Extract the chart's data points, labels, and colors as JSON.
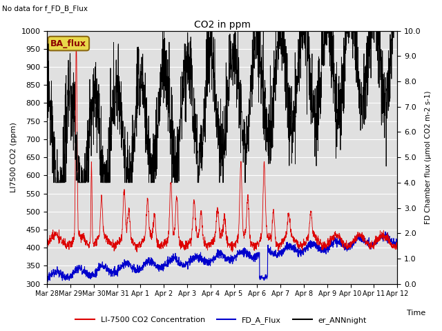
{
  "title": "CO2 in ppm",
  "top_left_text": "No data for f_FD_B_Flux",
  "ylabel_left": "LI7500 CO2 (ppm)",
  "ylabel_right": "FD Chamber flux (μmol CO2 m-2 s-1)",
  "xlabel": "Time",
  "ylim_left": [
    300,
    1000
  ],
  "ylim_right": [
    0.0,
    10.0
  ],
  "yticks_left": [
    300,
    350,
    400,
    450,
    500,
    550,
    600,
    650,
    700,
    750,
    800,
    850,
    900,
    950,
    1000
  ],
  "yticks_right": [
    0.0,
    1.0,
    2.0,
    3.0,
    4.0,
    5.0,
    6.0,
    7.0,
    8.0,
    9.0,
    10.0
  ],
  "background_color": "#e0e0e0",
  "legend_items": [
    {
      "label": "LI-7500 CO2 Concentration",
      "color": "#dd0000",
      "ls": "-"
    },
    {
      "label": "FD_A_Flux",
      "color": "#0000cc",
      "ls": "-"
    },
    {
      "label": "er_ANNnight",
      "color": "#000000",
      "ls": "-"
    }
  ],
  "ba_flux_label": "BA_flux",
  "xtick_labels": [
    "Mar 28",
    "Mar 29",
    "Mar 30",
    "Mar 31",
    "Apr 1",
    "Apr 2",
    "Apr 3",
    "Apr 4",
    "Apr 5",
    "Apr 6",
    "Apr 7",
    "Apr 8",
    "Apr 9",
    "Apr 10",
    "Apr 11",
    "Apr 12"
  ]
}
